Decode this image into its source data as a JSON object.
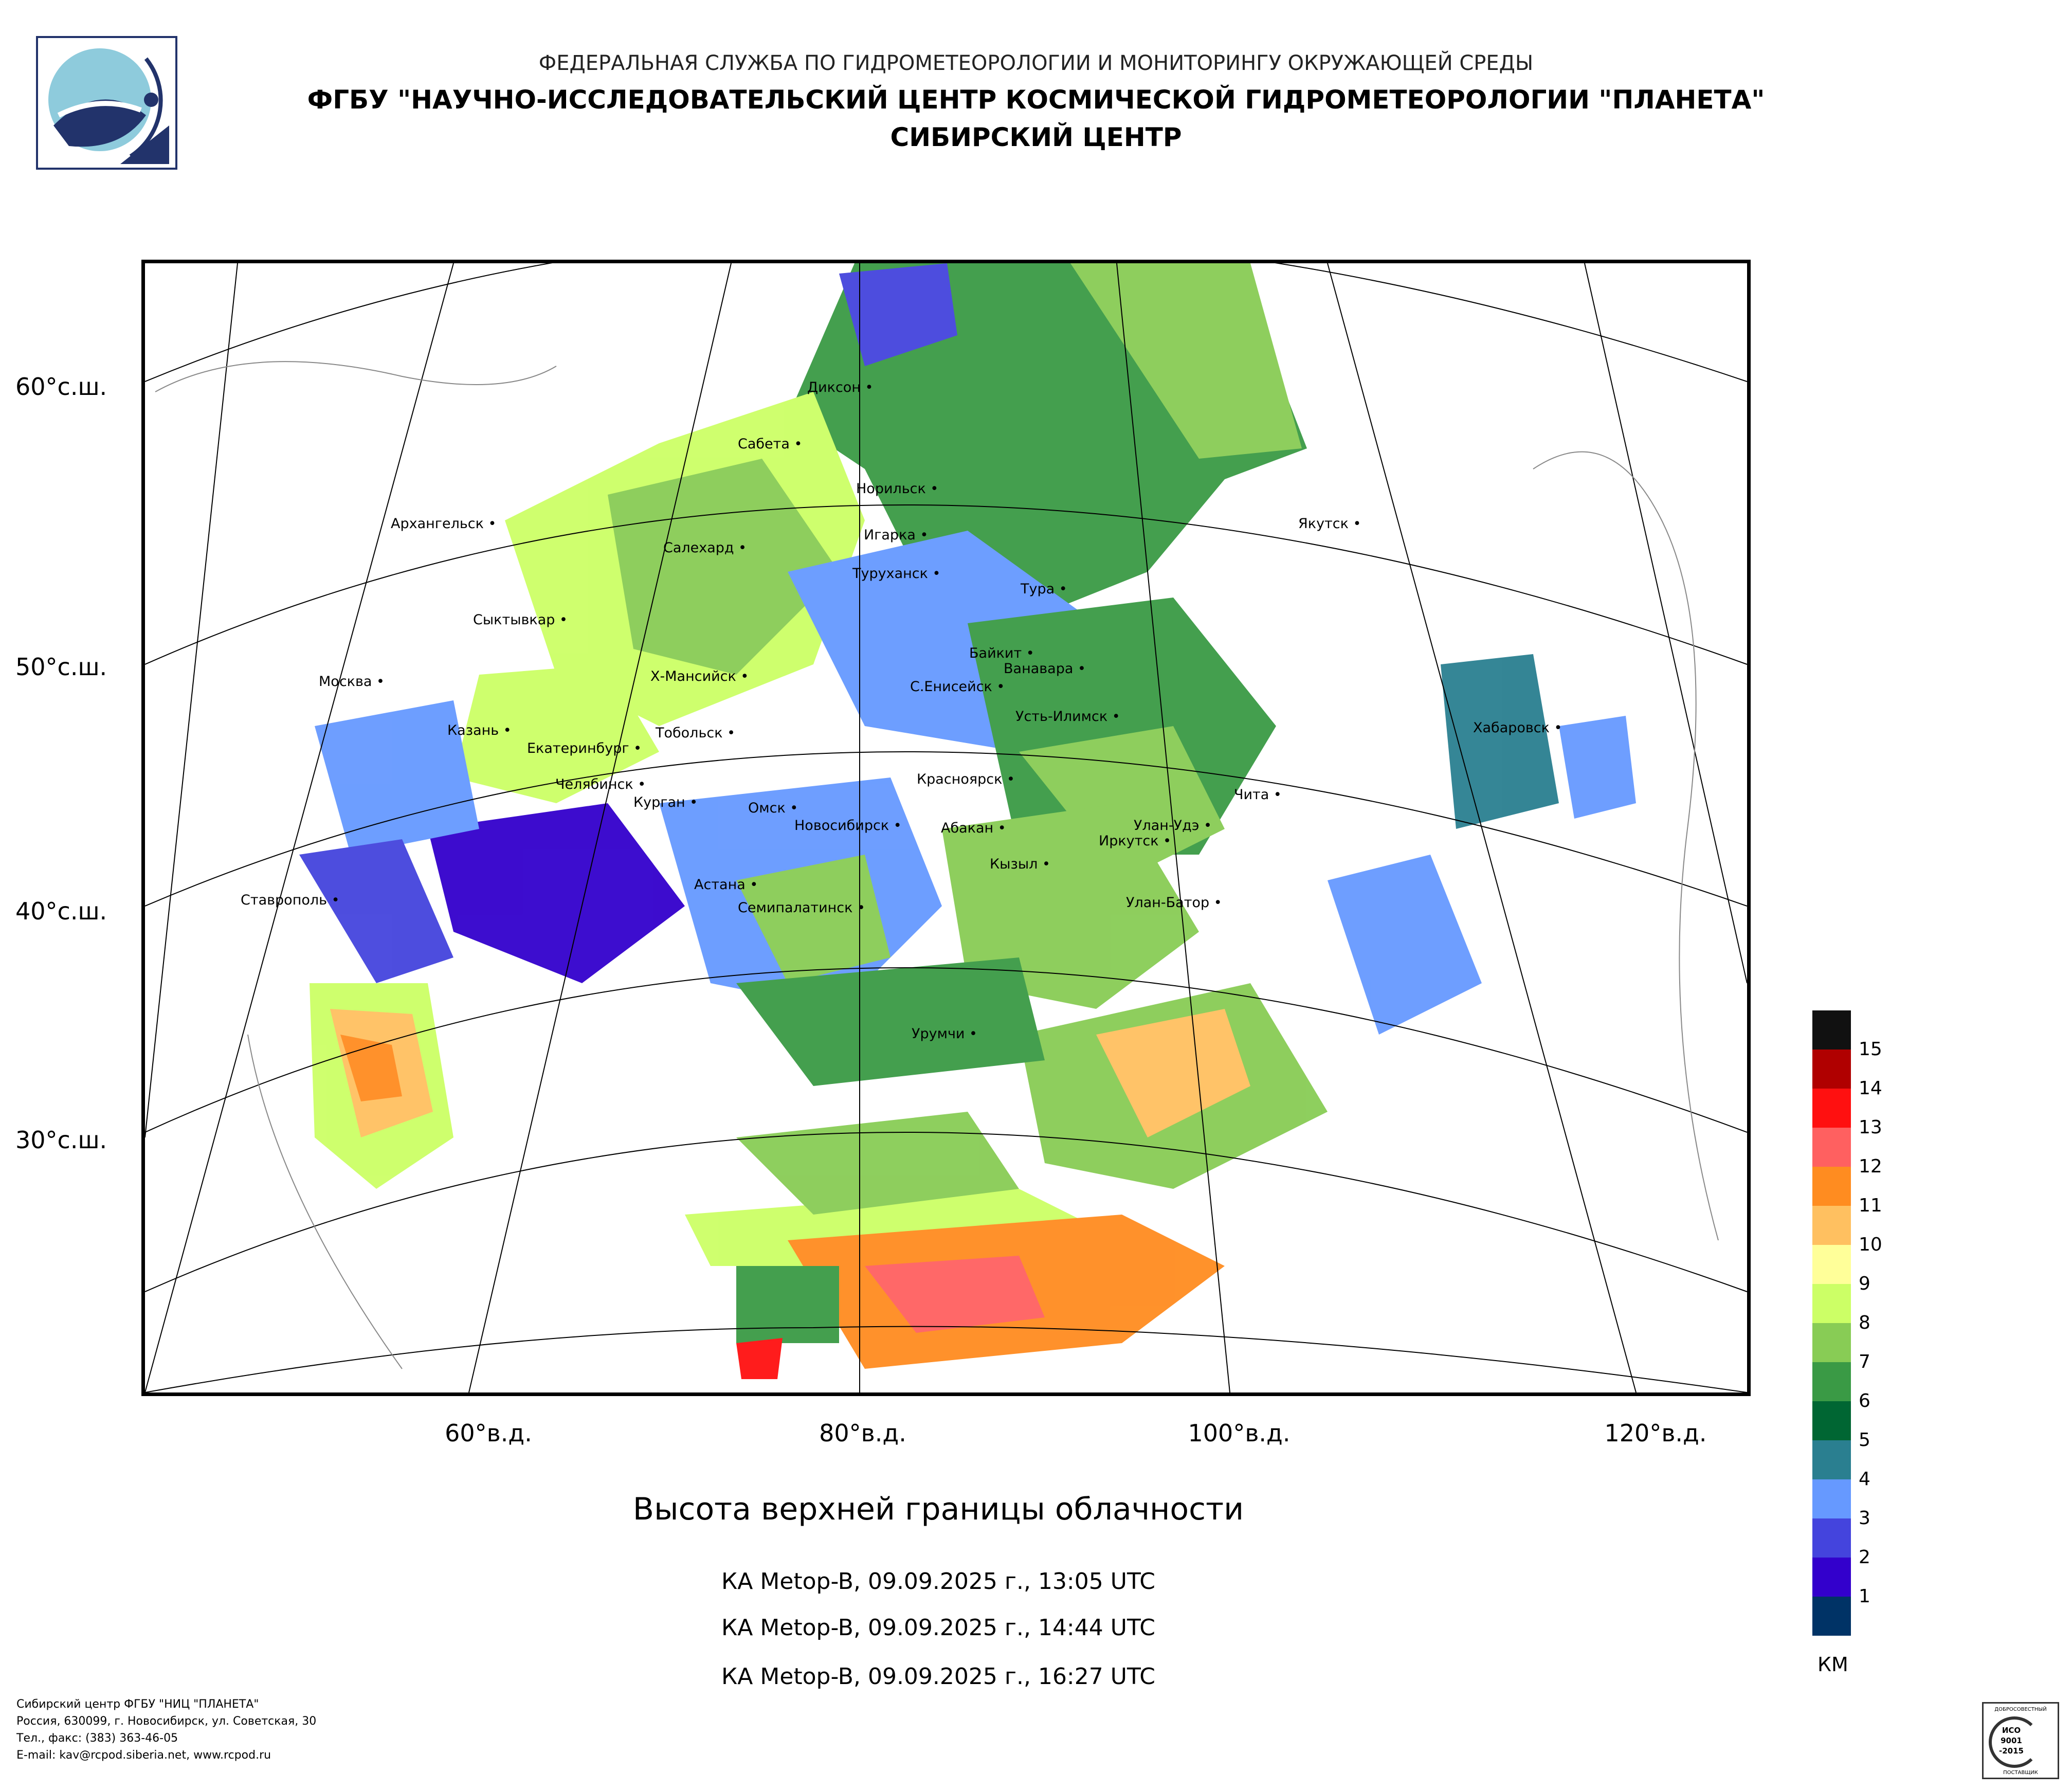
{
  "header": {
    "line1": "ФЕДЕРАЛЬНАЯ СЛУЖБА ПО ГИДРОМЕТЕОРОЛОГИИ И МОНИТОРИНГУ ОКРУЖАЮЩЕЙ СРЕДЫ",
    "line2": "ФГБУ \"НАУЧНО-ИССЛЕДОВАТЕЛЬСКИЙ ЦЕНТР КОСМИЧЕСКОЙ ГИДРОМЕТЕОРОЛОГИИ \"ПЛАНЕТА\"",
    "line3": "СИБИРСКИЙ ЦЕНТР"
  },
  "map": {
    "lat_labels": [
      "60°с.ш.",
      "50°с.ш.",
      "40°с.ш.",
      "30°с.ш."
    ],
    "lon_labels": [
      "60°в.д.",
      "80°в.д.",
      "100°в.д.",
      "120°в.д."
    ],
    "cities": [
      "Диксон",
      "Сабета",
      "Норильск",
      "Архангельск",
      "Игарка",
      "Салехард",
      "Якутск",
      "Туруханск",
      "Тура",
      "Сыктывкар",
      "Байкит",
      "Ванавара",
      "Х-Мансийск",
      "Москва",
      "С.Енисейск",
      "Усть-Илимск",
      "Казань",
      "Тобольск",
      "Хабаровск",
      "Екатеринбург",
      "Красноярск",
      "Челябинск",
      "Курган",
      "Омск",
      "Чита",
      "Новосибирск",
      "Абакан",
      "Улан-Удэ",
      "Иркутск",
      "Кызыл",
      "Астана",
      "Ставрополь",
      "Семипалатинск",
      "Улан-Батор",
      "Урумчи"
    ]
  },
  "title": "Высота верхней границы облачности",
  "satellite_passes": [
    "КА Metop-B, 09.09.2025 г., 13:05 UTC",
    "КА Metop-B, 09.09.2025 г., 14:44 UTC",
    "КА Metop-B, 09.09.2025 г., 16:27 UTC"
  ],
  "colorbar": {
    "unit": "КМ",
    "levels": [
      "15",
      "14",
      "13",
      "12",
      "11",
      "10",
      "9",
      "8",
      "7",
      "6",
      "5",
      "4",
      "3",
      "2",
      "1"
    ],
    "colors": [
      "#111111",
      "#b00000",
      "#ff1010",
      "#ff6060",
      "#ff8c20",
      "#ffc060",
      "#ffff99",
      "#ccff66",
      "#88cc55",
      "#3a9a45",
      "#006633",
      "#2a7f90",
      "#6699ff",
      "#4444dd",
      "#3300cc",
      "#003366"
    ]
  },
  "footer": {
    "line1": "Сибирский центр ФГБУ \"НИЦ \"ПЛАНЕТА\"",
    "line2": "Россия, 630099, г. Новосибирск, ул. Советская, 30",
    "line3": "Тел., факс: (383) 363-46-05",
    "line4": "E-mail: kav@rcpod.siberia.net, www.rcpod.ru"
  },
  "iso_badge": {
    "top": "ДОБРОСОВЕСТНЫЙ",
    "line1": "ИСО",
    "line2": "9001",
    "line3": "-2015",
    "bottom": "ПОСТАВЩИК"
  }
}
